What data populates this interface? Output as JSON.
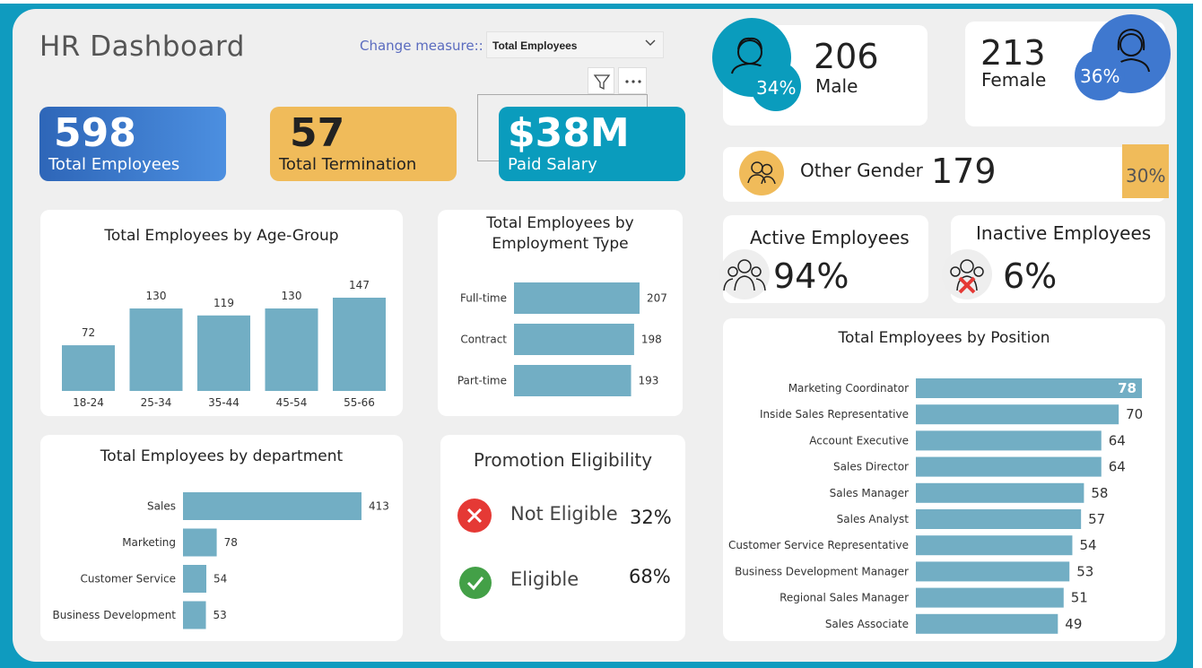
{
  "header": {
    "title": "HR Dashboard",
    "measure_label": "Change measure::",
    "measure_value": "Total Employees"
  },
  "kpis": [
    {
      "value": "598",
      "label": "Total Employees",
      "color": "#3f7fd0"
    },
    {
      "value": "57",
      "label": "Total Termination",
      "color": "#f0bb5a"
    },
    {
      "value": "$38M",
      "label": "Paid Salary",
      "color": "#0a9cbd"
    }
  ],
  "gender": {
    "male": {
      "count": "206",
      "label": "Male",
      "pct": "34%"
    },
    "female": {
      "count": "213",
      "label": "Female",
      "pct": "36%"
    },
    "other": {
      "label": "Other Gender",
      "count": "179",
      "pct": "30%"
    }
  },
  "status": {
    "active": {
      "label": "Active Employees",
      "pct": "94%"
    },
    "inactive": {
      "label": "Inactive Employees",
      "pct": "6%"
    }
  },
  "promotion": {
    "title": "Promotion Eligibility",
    "not_eligible": {
      "label": "Not Eligible",
      "pct": "32%"
    },
    "eligible": {
      "label": "Eligible",
      "pct": "68%"
    }
  },
  "colors": {
    "bar": "#72aec4",
    "accent": "#0f9bbf"
  },
  "chart_data": [
    {
      "type": "bar",
      "title": "Total Employees by Age-Group",
      "categories": [
        "18-24",
        "25-34",
        "35-44",
        "45-54",
        "55-66"
      ],
      "values": [
        72,
        130,
        119,
        130,
        147
      ]
    },
    {
      "type": "bar",
      "orientation": "horizontal",
      "title": "Total Employees by Employment Type",
      "categories": [
        "Full-time",
        "Contract",
        "Part-time"
      ],
      "values": [
        207,
        198,
        193
      ]
    },
    {
      "type": "bar",
      "orientation": "horizontal",
      "title": "Total Employees by department",
      "categories": [
        "Sales",
        "Marketing",
        "Customer Service",
        "Business Development"
      ],
      "values": [
        413,
        78,
        54,
        53
      ]
    },
    {
      "type": "bar",
      "orientation": "horizontal",
      "title": "Total Employees by Position",
      "categories": [
        "Marketing Coordinator",
        "Inside Sales Representative",
        "Account Executive",
        "Sales Director",
        "Sales Manager",
        "Sales Analyst",
        "Customer Service Representative",
        "Business Development Manager",
        "Regional Sales Manager",
        "Sales Associate"
      ],
      "values": [
        78,
        70,
        64,
        64,
        58,
        57,
        54,
        53,
        51,
        49
      ]
    }
  ]
}
